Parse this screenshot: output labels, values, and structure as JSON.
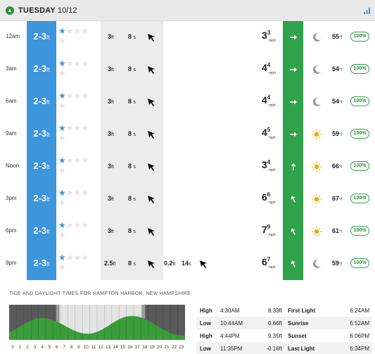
{
  "header": {
    "day": "TUESDAY",
    "date": "10/12",
    "day_icon": "chevron-up-icon",
    "signal_icon": "signal-bars-icon"
  },
  "colors": {
    "surf_column": "#3d95dc",
    "swell_column": "#ececec",
    "wind_column": "#2fa24a",
    "star_on": "#3d95dc",
    "confidence_border": "#2fa24a",
    "tide_fill": "#3a9d3a"
  },
  "forecast": [
    {
      "time": "12am",
      "surf": "2-3",
      "surf_unit": "ft",
      "stars_filled": 1,
      "stars_total": 4,
      "swell_height": "3",
      "swell_unit": "ft",
      "swell_period": "8",
      "period_unit": "s",
      "swell_dir": "swell-arrow-icon",
      "swell2_height": "",
      "swell2_period": "",
      "wind_speed": "3",
      "wind_gust": "3",
      "wind_unit": "mph",
      "wind_dir": "arrow-right-icon",
      "weather": "moon-icon",
      "temp": "55",
      "temp_unit": "°f",
      "confidence": "100%"
    },
    {
      "time": "3am",
      "surf": "2-3",
      "surf_unit": "ft",
      "stars_filled": 1,
      "stars_total": 4,
      "swell_height": "3",
      "swell_unit": "ft",
      "swell_period": "8",
      "period_unit": "s",
      "swell_dir": "swell-arrow-icon",
      "swell2_height": "",
      "swell2_period": "",
      "wind_speed": "4",
      "wind_gust": "4",
      "wind_unit": "mph",
      "wind_dir": "arrow-right-icon",
      "weather": "moon-icon",
      "temp": "54",
      "temp_unit": "°f",
      "confidence": "100%"
    },
    {
      "time": "6am",
      "surf": "2-3",
      "surf_unit": "ft",
      "stars_filled": 1,
      "stars_total": 4,
      "swell_height": "3",
      "swell_unit": "ft",
      "swell_period": "8",
      "period_unit": "s",
      "swell_dir": "swell-arrow-icon",
      "swell2_height": "",
      "swell2_period": "",
      "wind_speed": "4",
      "wind_gust": "4",
      "wind_unit": "mph",
      "wind_dir": "arrow-right-icon",
      "weather": "moon-icon",
      "temp": "54",
      "temp_unit": "°f",
      "confidence": "100%"
    },
    {
      "time": "9am",
      "surf": "2-3",
      "surf_unit": "ft",
      "stars_filled": 1,
      "stars_total": 4,
      "swell_height": "3",
      "swell_unit": "ft",
      "swell_period": "8",
      "period_unit": "s",
      "swell_dir": "swell-arrow-icon",
      "swell2_height": "",
      "swell2_period": "",
      "wind_speed": "4",
      "wind_gust": "5",
      "wind_unit": "mph",
      "wind_dir": "arrow-right-icon",
      "weather": "sun-icon",
      "temp": "59",
      "temp_unit": "°f",
      "confidence": "100%"
    },
    {
      "time": "Noon",
      "surf": "2-3",
      "surf_unit": "ft",
      "stars_filled": 1,
      "stars_total": 4,
      "swell_height": "3",
      "swell_unit": "ft",
      "swell_period": "8",
      "period_unit": "s",
      "swell_dir": "swell-arrow-icon",
      "swell2_height": "",
      "swell2_period": "",
      "wind_speed": "3",
      "wind_gust": "4",
      "wind_unit": "mph",
      "wind_dir": "arrow-up-icon",
      "weather": "sun-icon",
      "temp": "66",
      "temp_unit": "°f",
      "confidence": "100%"
    },
    {
      "time": "3pm",
      "surf": "2-3",
      "surf_unit": "ft",
      "stars_filled": 1,
      "stars_total": 4,
      "swell_height": "3",
      "swell_unit": "ft",
      "swell_period": "8",
      "period_unit": "s",
      "swell_dir": "swell-arrow-icon",
      "swell2_height": "",
      "swell2_period": "",
      "wind_speed": "6",
      "wind_gust": "6",
      "wind_unit": "mph",
      "wind_dir": "arrow-up-left-icon",
      "weather": "sun-icon",
      "temp": "67",
      "temp_unit": "°f",
      "confidence": "100%"
    },
    {
      "time": "6pm",
      "surf": "2-3",
      "surf_unit": "ft",
      "stars_filled": 1,
      "stars_total": 4,
      "swell_height": "3",
      "swell_unit": "ft",
      "swell_period": "8",
      "period_unit": "s",
      "swell_dir": "swell-arrow-icon",
      "swell2_height": "",
      "swell2_period": "",
      "wind_speed": "7",
      "wind_gust": "9",
      "wind_unit": "mph",
      "wind_dir": "arrow-up-left-icon",
      "weather": "sun-icon",
      "temp": "61",
      "temp_unit": "°f",
      "confidence": "100%"
    },
    {
      "time": "9pm",
      "surf": "2-3",
      "surf_unit": "ft",
      "stars_filled": 1,
      "stars_total": 4,
      "swell_height": "2.5",
      "swell_unit": "ft",
      "swell_period": "8",
      "period_unit": "s",
      "swell_dir": "swell-arrow-icon",
      "swell2_height": "0.2",
      "swell2_period": "14",
      "wind_speed": "6",
      "wind_gust": "7",
      "wind_unit": "mph",
      "wind_dir": "arrow-up-left-icon",
      "weather": "moon-icon",
      "temp": "59",
      "temp_unit": "°f",
      "confidence": "100%"
    }
  ],
  "tide": {
    "title": "TIDE AND DAYLIGHT TIMES FOR HAMPTON HARBOR, NEW HAMPSHIRE",
    "hours": [
      "0",
      "1",
      "2",
      "3",
      "4",
      "5",
      "6",
      "7",
      "8",
      "9",
      "10",
      "11",
      "12",
      "13",
      "14",
      "15",
      "16",
      "17",
      "18",
      "19",
      "20",
      "21",
      "22",
      "23"
    ],
    "rows": [
      {
        "type": "High",
        "time": "4:30AM",
        "height": "8.33ft",
        "daylight_label": "First Light",
        "daylight_time": "6:24AM"
      },
      {
        "type": "Low",
        "time": "10:44AM",
        "height": "0.66ft",
        "daylight_label": "Sunrise",
        "daylight_time": "6:52AM"
      },
      {
        "type": "High",
        "time": "4:44PM",
        "height": "9.35ft",
        "daylight_label": "Sunset",
        "daylight_time": "6:06PM"
      },
      {
        "type": "Low",
        "time": "11:35PM",
        "height": "-0.16ft",
        "daylight_label": "Last Light",
        "daylight_time": "6:34PM"
      }
    ]
  }
}
